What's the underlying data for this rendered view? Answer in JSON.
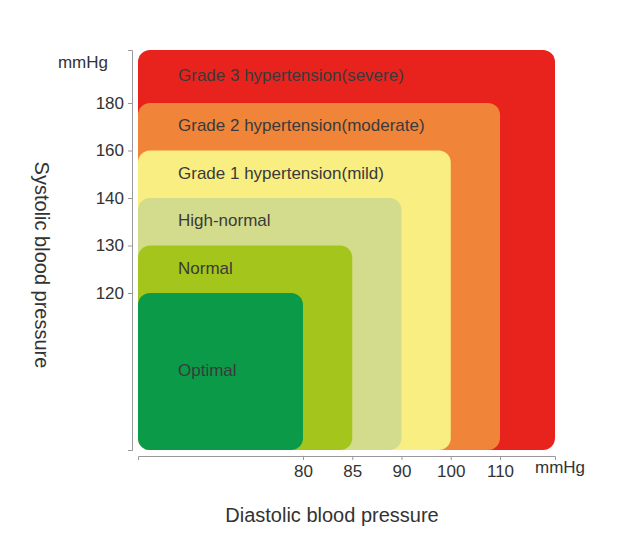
{
  "chart_data": {
    "type": "nested",
    "y_label": "Systolic blood pressure",
    "x_label": "Diastolic blood pressure",
    "y_unit": "mmHg",
    "x_unit": "mmHg",
    "categories": [
      "Optimal",
      "Normal",
      "High-normal",
      "Grade 1 hypertension(mild)",
      "Grade 2 hypertension(moderate)",
      "Grade 3 hypertension(severe)"
    ],
    "values": [
      120,
      130,
      140,
      160,
      180,
      null
    ],
    "x": [
      80,
      85,
      90,
      100,
      110,
      null
    ],
    "colors": [
      "#0b9a47",
      "#a4c51b",
      "#d3dc8d",
      "#f9ee82",
      "#f0853a",
      "#e8231e"
    ],
    "ylim": [
      90,
      200
    ],
    "yticks": [
      120,
      130,
      140,
      160,
      180
    ],
    "xlim": [
      60,
      120
    ],
    "xticks": [
      80,
      85,
      90,
      100,
      110
    ]
  }
}
